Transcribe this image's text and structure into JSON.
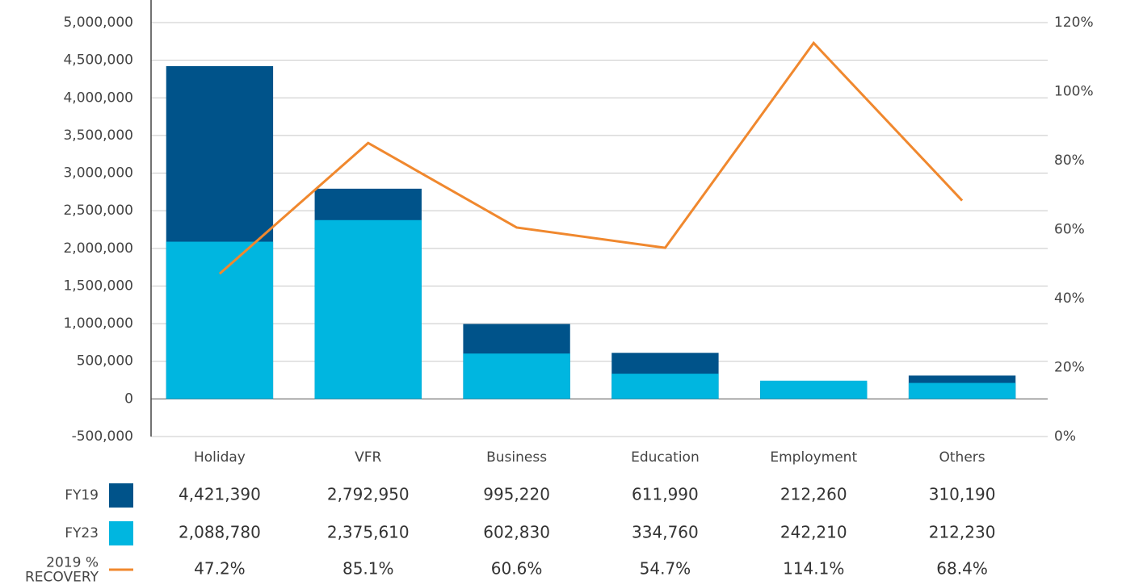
{
  "chart_data": {
    "type": "bar",
    "categories": [
      "Holiday",
      "VFR",
      "Business",
      "Education",
      "Employment",
      "Others"
    ],
    "series": [
      {
        "name": "FY19",
        "color": "#00538a",
        "values": [
          4421390,
          2792950,
          995220,
          611990,
          212260,
          310190
        ],
        "value_labels": [
          "4,421,390",
          "2,792,950",
          "995,220",
          "611,990",
          "212,260",
          "310,190"
        ]
      },
      {
        "name": "FY23",
        "color": "#00b6e0",
        "values": [
          2088780,
          2375610,
          602830,
          334760,
          242210,
          212230
        ],
        "value_labels": [
          "2,088,780",
          "2,375,610",
          "602,830",
          "334,760",
          "242,210",
          "212,230"
        ]
      },
      {
        "name": "2019 % RECOVERY",
        "color": "#f0882e",
        "type": "line",
        "axis": "y2",
        "values": [
          47.2,
          85.1,
          60.6,
          54.7,
          114.1,
          68.4
        ],
        "value_labels": [
          "47.2%",
          "85.1%",
          "60.6%",
          "54.7%",
          "114.1%",
          "68.4%"
        ]
      }
    ],
    "ylim": [
      -500000,
      5000000
    ],
    "yticks": [
      {
        "value": -500000,
        "label": "-500,000"
      },
      0,
      {
        "value": 500000,
        "label": "500,000"
      },
      {
        "value": 1000000,
        "label": "1,000,000"
      },
      {
        "value": 1500000,
        "label": "1,500,000"
      },
      {
        "value": 2000000,
        "label": "2,000,000"
      },
      {
        "value": 2500000,
        "label": "2,500,000"
      },
      {
        "value": 3000000,
        "label": "3,000,000"
      },
      {
        "value": 3500000,
        "label": "3,500,000"
      },
      {
        "value": 4000000,
        "label": "4,000,000"
      },
      {
        "value": 4500000,
        "label": "4,500,000"
      },
      {
        "value": 5000000,
        "label": "5,000,000"
      }
    ],
    "y2lim": [
      0,
      120
    ],
    "y2ticks": [
      {
        "value": 0,
        "label": "0%"
      },
      {
        "value": 20,
        "label": "20%"
      },
      {
        "value": 40,
        "label": "40%"
      },
      {
        "value": 60,
        "label": "60%"
      },
      {
        "value": 80,
        "label": "80%"
      },
      {
        "value": 100,
        "label": "100%"
      },
      {
        "value": 120,
        "label": "120%"
      }
    ],
    "grid": true
  }
}
